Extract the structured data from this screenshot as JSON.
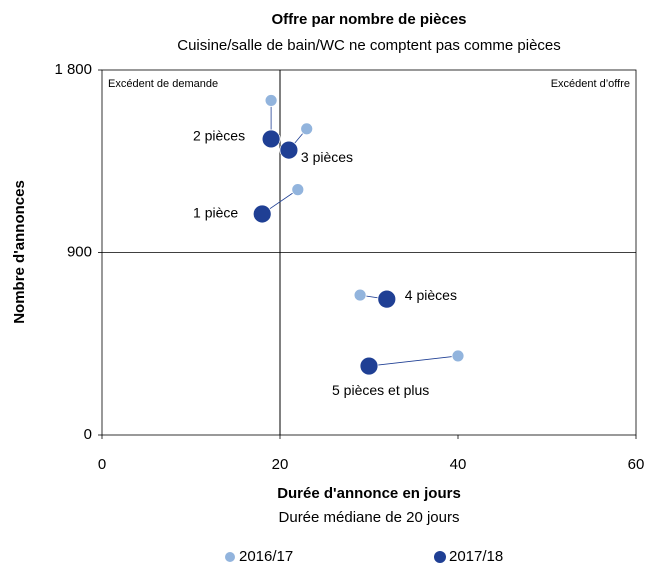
{
  "chart_data": {
    "type": "scatter",
    "title": "Offre par nombre de pièces",
    "subtitle": "Cuisine/salle de bain/WC ne comptent pas comme pièces",
    "xlabel": "Durée d'annonce en jours",
    "xsublabel": "Durée médiane de 20 jours",
    "ylabel": "Nombre d'annonces",
    "labels": [
      "1 pièce",
      "2 pièces",
      "3 pièces",
      "4 pièces",
      "5 pièces et plus"
    ],
    "series": [
      {
        "name": "2016/17",
        "color": "#92b4dd",
        "x": [
          22,
          19,
          23,
          29,
          40
        ],
        "values": [
          1210,
          1650,
          1510,
          690,
          390
        ]
      },
      {
        "name": "2017/18",
        "color": "#1f3f94",
        "x": [
          18,
          19,
          21,
          32,
          30
        ],
        "values": [
          1090,
          1460,
          1405,
          670,
          340
        ]
      }
    ],
    "xlim": [
      0,
      60
    ],
    "xticks": [
      0,
      20,
      40,
      60
    ],
    "ylim": [
      0,
      1800
    ],
    "yticks": [
      0,
      900,
      {
        "value": 1800,
        "label": "1 800"
      }
    ],
    "xref": 20,
    "yref": 900,
    "annotations": [
      "Excédent de demande",
      "Excédent d’offre"
    ],
    "legend": "bottom"
  }
}
